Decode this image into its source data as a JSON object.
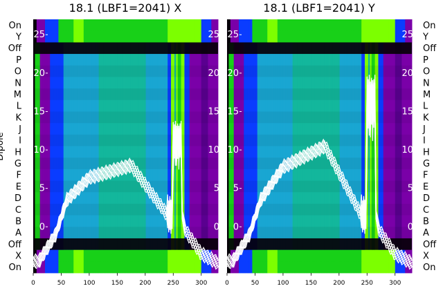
{
  "chart_data": {
    "type": "heatmap",
    "y_axis_title": "Dipole",
    "row_labels": [
      "On",
      "Y",
      "Off",
      "P",
      "O",
      "N",
      "M",
      "L",
      "K",
      "J",
      "I",
      "H",
      "G",
      "F",
      "E",
      "D",
      "C",
      "B",
      "A",
      "Off",
      "X",
      "On"
    ],
    "x_ticks": [
      0,
      50,
      100,
      150,
      200,
      250,
      300
    ],
    "xlim": [
      0,
      330
    ],
    "inner_ylim": [
      -6,
      27
    ],
    "inner_ticks": [
      0,
      5,
      10,
      15,
      20,
      25
    ],
    "panels": [
      {
        "title": "18.1 (LBF1=2041) X",
        "peak_y": 8,
        "spike_y": 13,
        "line_color": "#ffffff"
      },
      {
        "title": "18.1 (LBF1=2041) Y",
        "peak_y": 10.5,
        "spike_y": 19,
        "line_color": "#ffffff"
      }
    ],
    "colors": {
      "dark": "#050008",
      "purple": "#7a00a8",
      "blue": "#0a3cff",
      "cyan": "#19a6d2",
      "teal": "#13b79c",
      "green": "#18d018",
      "lime": "#7cff00",
      "line": "#ffffff"
    }
  }
}
